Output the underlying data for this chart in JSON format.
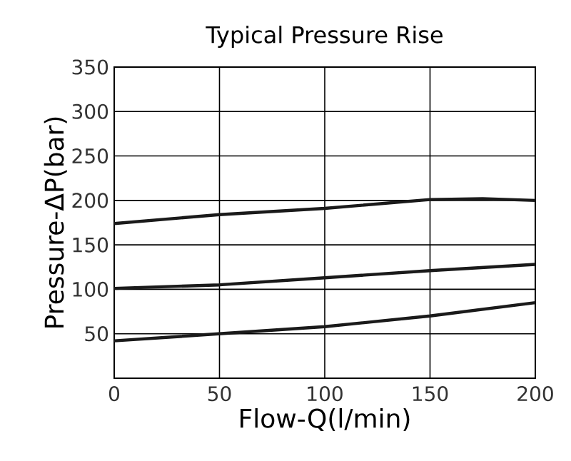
{
  "chart_data": {
    "type": "line",
    "title": "Typical Pressure Rise",
    "xlabel": "Flow-Q(l/min)",
    "ylabel": "Pressure-ΔP(bar)",
    "series": [
      {
        "color": "#1a1a1a",
        "x": [
          0,
          50,
          100,
          150,
          175,
          200
        ],
        "values": [
          174,
          184,
          191,
          201,
          202,
          200
        ]
      },
      {
        "color": "#1a1a1a",
        "x": [
          0,
          50,
          100,
          150,
          200
        ],
        "values": [
          101,
          105,
          113,
          121,
          128
        ]
      },
      {
        "color": "#1a1a1a",
        "x": [
          0,
          50,
          100,
          150,
          200
        ],
        "values": [
          42,
          50,
          58,
          70,
          85
        ]
      }
    ],
    "xlim": [
      0,
      200
    ],
    "xticks": [
      0,
      50,
      100,
      150,
      200
    ],
    "ylim": [
      0,
      350
    ],
    "yticks": [
      50,
      100,
      150,
      200,
      250,
      300,
      350
    ],
    "grid": true,
    "marker": "none",
    "line_style": "solid"
  }
}
